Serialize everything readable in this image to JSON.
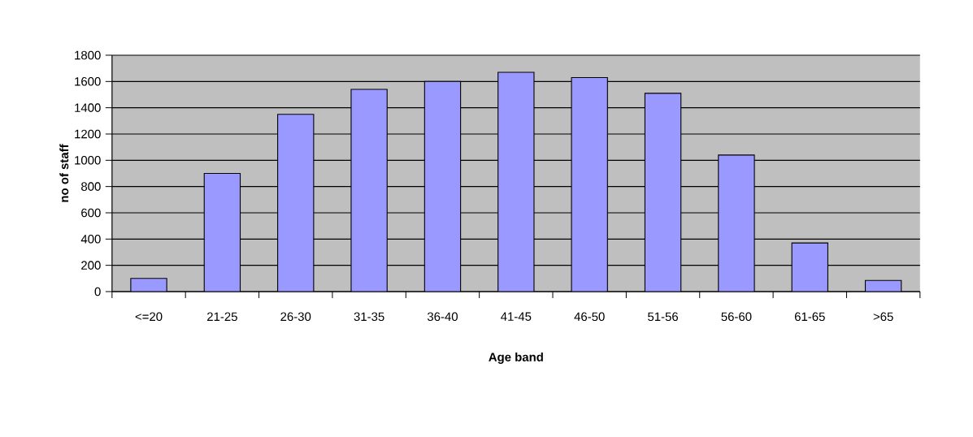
{
  "chart_data": {
    "type": "bar",
    "xlabel": "Age band",
    "ylabel": "no of staff",
    "categories": [
      "<=20",
      "21-25",
      "26-30",
      "31-35",
      "36-40",
      "41-45",
      "46-50",
      "51-56",
      "56-60",
      "61-65",
      ">65"
    ],
    "values": [
      100,
      900,
      1350,
      1540,
      1600,
      1670,
      1630,
      1510,
      1040,
      370,
      85
    ],
    "color": "#9999ff",
    "ylim": [
      0,
      1800
    ],
    "yticks": [
      0,
      200,
      400,
      600,
      800,
      1000,
      1200,
      1400,
      1600,
      1800
    ],
    "grid": "y"
  }
}
